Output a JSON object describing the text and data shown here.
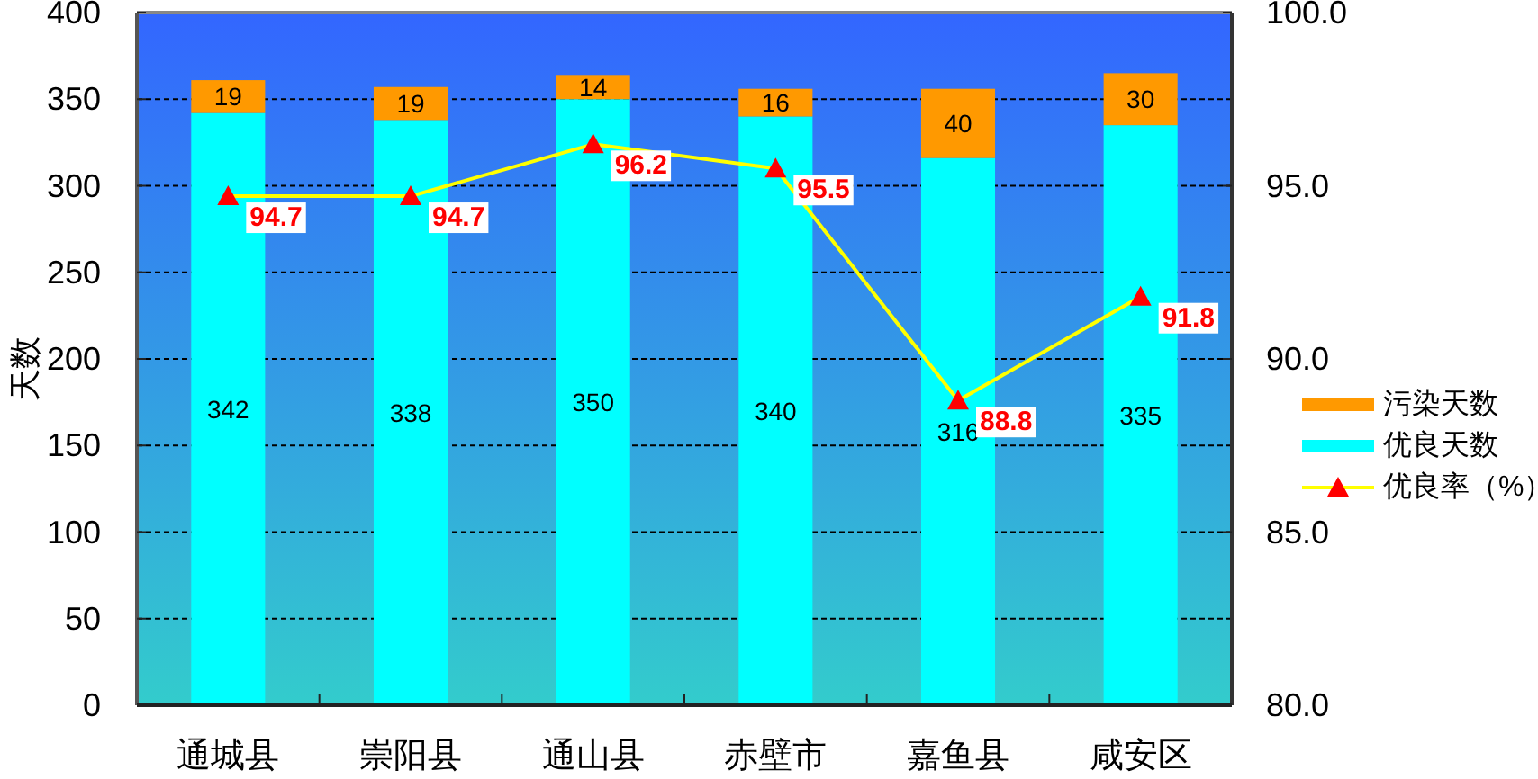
{
  "chart_data": {
    "type": "bar",
    "stacked": true,
    "categories": [
      "通城县",
      "崇阳县",
      "通山县",
      "赤壁市",
      "嘉鱼县",
      "咸安区"
    ],
    "series": [
      {
        "name": "优良天数",
        "color": "#00ffff",
        "values": [
          342,
          338,
          350,
          340,
          316,
          335
        ]
      },
      {
        "name": "污染天数",
        "color": "#ff9900",
        "values": [
          19,
          19,
          14,
          16,
          40,
          30
        ]
      },
      {
        "name": "优良率（%）",
        "type": "line",
        "axis": "y2",
        "color": "#ffff00",
        "colors": [
          "#ff0000",
          "#ff0000",
          "#ff0000",
          "#ff0000",
          "#ff0000",
          "#ff0000"
        ],
        "marker": "triangle",
        "values": [
          94.7,
          94.7,
          96.2,
          95.5,
          88.8,
          91.8
        ]
      }
    ],
    "ylabel": "天数",
    "ylim": [
      0,
      400
    ],
    "yticks": [
      0,
      50,
      100,
      150,
      200,
      250,
      300,
      350,
      400
    ],
    "y2lim": [
      80,
      100
    ],
    "y2ticks": [
      {
        "value": 80,
        "label": "80.0"
      },
      {
        "value": 85,
        "label": "85.0"
      },
      {
        "value": 90,
        "label": "90.0"
      },
      {
        "value": 95,
        "label": "95.0"
      },
      {
        "value": 100,
        "label": "100.0"
      }
    ],
    "grid": "y",
    "legend": "right",
    "data_labels": true
  }
}
